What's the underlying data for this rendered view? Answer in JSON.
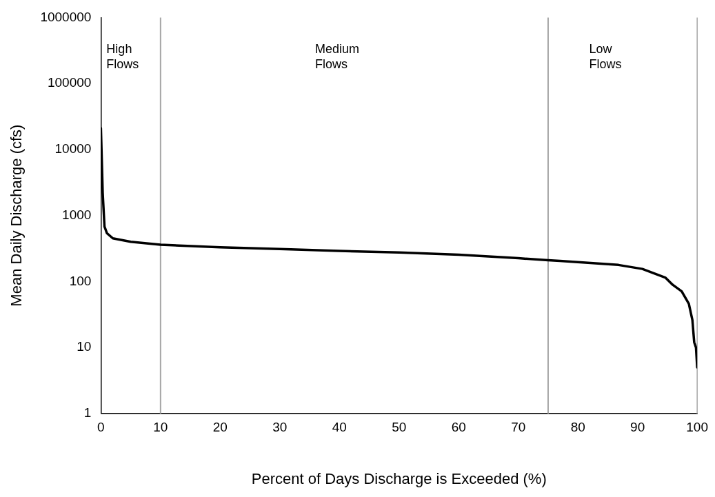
{
  "chart_data": {
    "type": "line",
    "xlabel": "Percent of Days Discharge is Exceeded (%)",
    "ylabel": "Mean Daily Discharge (cfs)",
    "x": [
      0,
      0.3,
      0.6,
      1,
      2,
      5,
      10,
      20,
      30,
      40,
      50,
      60,
      70,
      75,
      77,
      86.8,
      90.8,
      94.7,
      95.9,
      97.4,
      98.6,
      99.2,
      99.5,
      99.8,
      100
    ],
    "series": [
      {
        "color": "#000000",
        "values": [
          21000,
          2200,
          680,
          540,
          450,
          400,
          360,
          330,
          310,
          290,
          275,
          255,
          225,
          210,
          205,
          178,
          155,
          114,
          89,
          71,
          46,
          26,
          12,
          10,
          5
        ]
      }
    ],
    "xlim": [
      0,
      100
    ],
    "xticks": [
      0,
      10,
      20,
      30,
      40,
      50,
      60,
      70,
      80,
      90,
      100
    ],
    "ylim": [
      1,
      1000000
    ],
    "yticks": [
      1,
      10,
      100,
      1000,
      10000,
      100000,
      1000000
    ],
    "log": "y",
    "grid": false,
    "legend": false,
    "marker": "none",
    "line_style": "solid",
    "ref_lines": [
      {
        "axis": "x",
        "value": 10,
        "color": "#a6a6a6"
      },
      {
        "axis": "x",
        "value": 75,
        "color": "#a6a6a6"
      }
    ],
    "annotations": [
      "High Flows",
      "Medium Flows",
      "Low Flows"
    ]
  }
}
